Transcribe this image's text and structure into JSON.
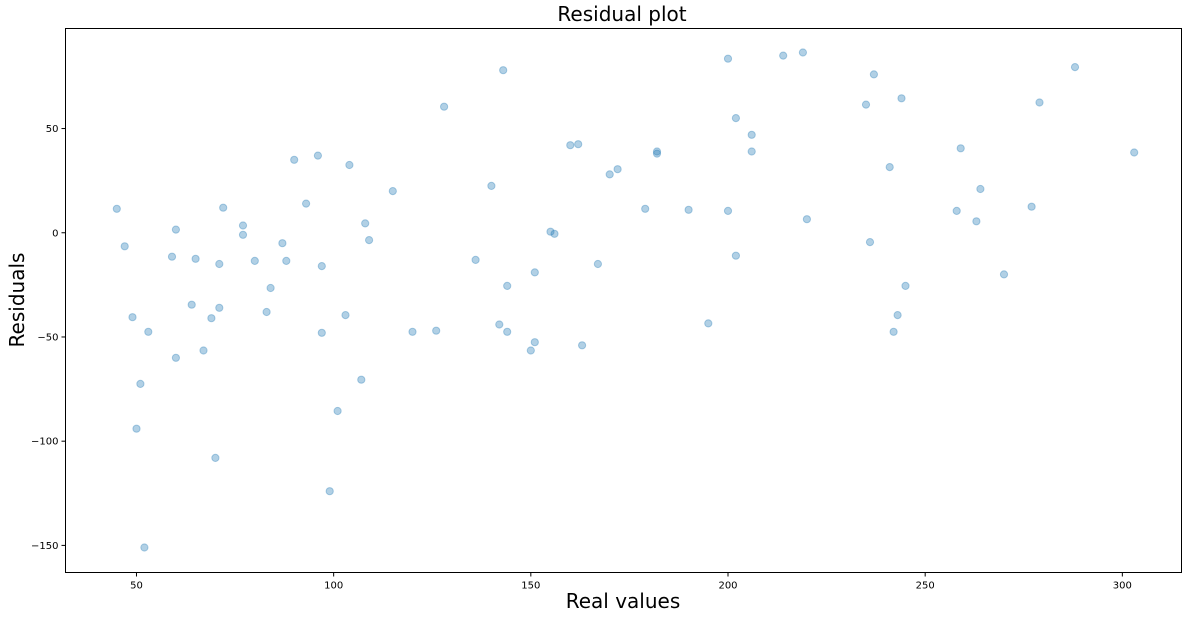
{
  "chart_data": {
    "type": "scatter",
    "title": "Residual plot",
    "xlabel": "Real values",
    "ylabel": "Residuals",
    "xlim": [
      32,
      315
    ],
    "ylim": [
      -163,
      98
    ],
    "xticks": [
      50,
      100,
      150,
      200,
      250,
      300
    ],
    "yticks": [
      -150,
      -100,
      -50,
      0,
      50
    ],
    "marker_color": "#1f77b4",
    "marker_alpha": 0.35,
    "grid": false,
    "series": [
      {
        "points": [
          [
            45,
            11.5
          ],
          [
            47,
            -6.5
          ],
          [
            49,
            -40.5
          ],
          [
            50,
            -94
          ],
          [
            51,
            -72.5
          ],
          [
            52,
            -151
          ],
          [
            53,
            -47.5
          ],
          [
            59,
            -11.5
          ],
          [
            60,
            1.5
          ],
          [
            60,
            -60
          ],
          [
            64,
            -34.5
          ],
          [
            65,
            -12.5
          ],
          [
            67,
            -56.5
          ],
          [
            69,
            -41
          ],
          [
            70,
            -108
          ],
          [
            71,
            -15
          ],
          [
            71,
            -36
          ],
          [
            72,
            12
          ],
          [
            77,
            3.5
          ],
          [
            77,
            -1
          ],
          [
            80,
            -13.5
          ],
          [
            83,
            -38
          ],
          [
            84,
            -26.5
          ],
          [
            87,
            -5
          ],
          [
            88,
            -13.5
          ],
          [
            90,
            35
          ],
          [
            93,
            14
          ],
          [
            96,
            37
          ],
          [
            97,
            -16
          ],
          [
            97,
            -48
          ],
          [
            99,
            -124
          ],
          [
            101,
            -85.5
          ],
          [
            103,
            -39.5
          ],
          [
            104,
            32.5
          ],
          [
            107,
            -70.5
          ],
          [
            108,
            4.5
          ],
          [
            109,
            -3.5
          ],
          [
            115,
            20
          ],
          [
            120,
            -47.5
          ],
          [
            126,
            -47
          ],
          [
            128,
            60.5
          ],
          [
            136,
            -13
          ],
          [
            140,
            22.5
          ],
          [
            142,
            -44
          ],
          [
            143,
            78
          ],
          [
            144,
            -25.5
          ],
          [
            144,
            -47.5
          ],
          [
            150,
            -56.5
          ],
          [
            151,
            -19
          ],
          [
            151,
            -52.5
          ],
          [
            155,
            0.5
          ],
          [
            156,
            -0.5
          ],
          [
            160,
            42
          ],
          [
            162,
            42.5
          ],
          [
            163,
            -54
          ],
          [
            167,
            -15
          ],
          [
            170,
            28
          ],
          [
            172,
            30.5
          ],
          [
            179,
            11.5
          ],
          [
            182,
            39
          ],
          [
            182,
            38
          ],
          [
            190,
            11
          ],
          [
            195,
            -43.5
          ],
          [
            200,
            83.5
          ],
          [
            200,
            10.5
          ],
          [
            202,
            55
          ],
          [
            202,
            -11
          ],
          [
            206,
            47
          ],
          [
            206,
            39
          ],
          [
            214,
            85
          ],
          [
            219,
            86.5
          ],
          [
            220,
            6.5
          ],
          [
            235,
            61.5
          ],
          [
            236,
            -4.5
          ],
          [
            237,
            76
          ],
          [
            241,
            31.5
          ],
          [
            242,
            -47.5
          ],
          [
            243,
            -39.5
          ],
          [
            244,
            64.5
          ],
          [
            245,
            -25.5
          ],
          [
            258,
            10.5
          ],
          [
            259,
            40.5
          ],
          [
            263,
            5.5
          ],
          [
            264,
            21
          ],
          [
            270,
            -20
          ],
          [
            277,
            12.5
          ],
          [
            279,
            62.5
          ],
          [
            288,
            79.5
          ],
          [
            303,
            38.5
          ]
        ]
      }
    ]
  }
}
